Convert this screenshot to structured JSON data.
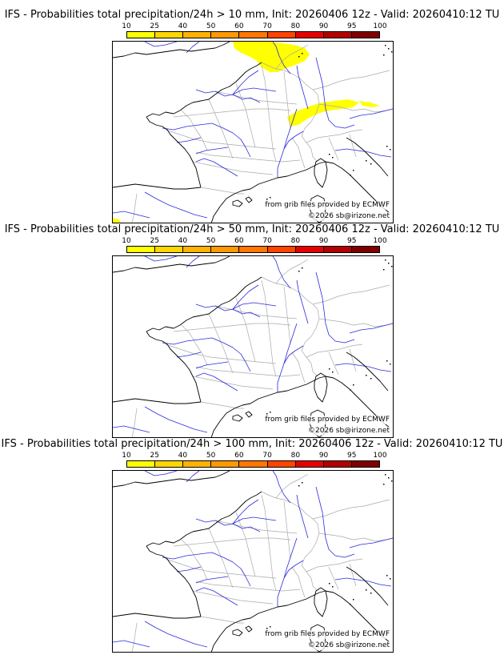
{
  "colorbar": {
    "ticks": [
      "10",
      "25",
      "40",
      "50",
      "60",
      "70",
      "80",
      "90",
      "95",
      "100"
    ],
    "colors": [
      "#ffff00",
      "#ffd700",
      "#ffb300",
      "#ff9900",
      "#ff7700",
      "#ff4400",
      "#e60000",
      "#b30000",
      "#800000"
    ]
  },
  "colors": {
    "coast": "#000000",
    "rivers": "#2b2bdd",
    "borders": "#aaaaaa",
    "precip": "#ffff00"
  },
  "panels": [
    {
      "title": "IFS - Probabilities total precipitation/24h > 10 mm, Init: 20260406 12z - Valid: 20260410:12 TU",
      "credit_source": "from grib files provided by ECMWF",
      "credit_copyright": "©2026 sb@irizone.net",
      "has_precip": true
    },
    {
      "title": "IFS - Probabilities total precipitation/24h > 50 mm, Init: 20260406 12z - Valid: 20260410:12 TU",
      "credit_source": "from grib files provided by ECMWF",
      "credit_copyright": "©2026 sb@irizone.net",
      "has_precip": false
    },
    {
      "title": "IFS - Probabilities total precipitation/24h > 100 mm, Init: 20260406 12z - Valid: 20260410:12 TU",
      "credit_source": "from grib files provided by ECMWF",
      "credit_copyright": "©2026 sb@irizone.net",
      "has_precip": false
    }
  ]
}
